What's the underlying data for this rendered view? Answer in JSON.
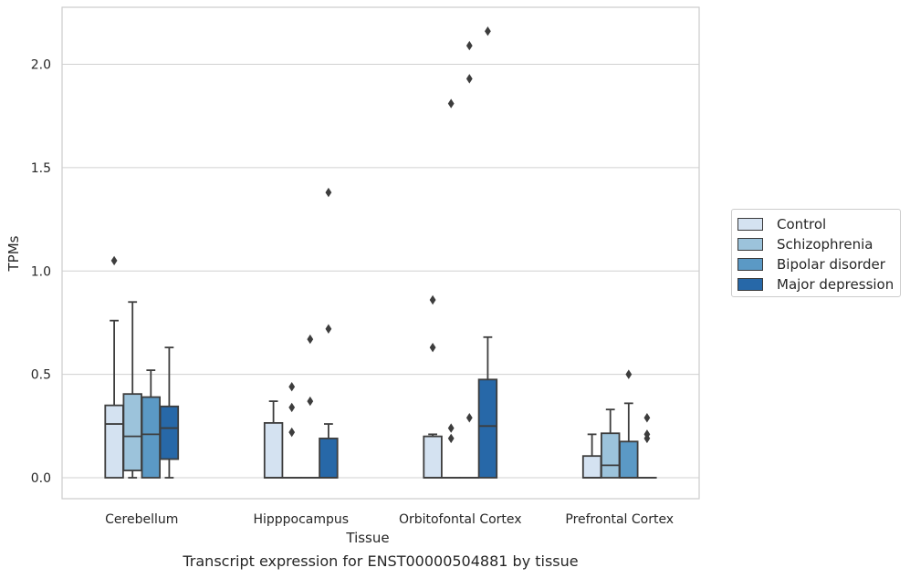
{
  "chart_data": {
    "type": "box",
    "xlabel": "Tissue",
    "ylabel": "TPMs",
    "caption": "Transcript expression for ENST00000504881 by tissue",
    "ylim": [
      -0.1,
      2.28
    ],
    "yticks": [
      0.0,
      0.5,
      1.0,
      1.5,
      2.0
    ],
    "ytick_labels": [
      "0.0",
      "0.5",
      "1.0",
      "1.5",
      "2.0"
    ],
    "grid": "horizontal",
    "legend_placement": "right-center",
    "categories": [
      "Cerebellum",
      "Hipppocampus",
      "Orbitofontal Cortex",
      "Prefrontal Cortex"
    ],
    "series": [
      {
        "name": "Control",
        "color": "#d4e2f1",
        "boxes": [
          {
            "whisker_low": 0.0,
            "q1": 0.0,
            "median": 0.26,
            "q3": 0.35,
            "whisker_high": 0.76,
            "outliers": [
              1.05
            ]
          },
          {
            "whisker_low": 0.0,
            "q1": 0.0,
            "median": 0.0,
            "q3": 0.265,
            "whisker_high": 0.37,
            "outliers": []
          },
          {
            "whisker_low": 0.0,
            "q1": 0.0,
            "median": 0.0,
            "q3": 0.2,
            "whisker_high": 0.21,
            "outliers": [
              0.63,
              0.86
            ]
          },
          {
            "whisker_low": 0.0,
            "q1": 0.0,
            "median": 0.0,
            "q3": 0.105,
            "whisker_high": 0.21,
            "outliers": []
          }
        ]
      },
      {
        "name": "Schizophrenia",
        "color": "#9cc3db",
        "boxes": [
          {
            "whisker_low": 0.0,
            "q1": 0.035,
            "median": 0.2,
            "q3": 0.405,
            "whisker_high": 0.85,
            "outliers": []
          },
          {
            "whisker_low": 0.0,
            "q1": 0.0,
            "median": 0.0,
            "q3": 0.0,
            "whisker_high": 0.0,
            "outliers": [
              0.22,
              0.34,
              0.44
            ]
          },
          {
            "whisker_low": 0.0,
            "q1": 0.0,
            "median": 0.0,
            "q3": 0.0,
            "whisker_high": 0.0,
            "outliers": [
              0.19,
              0.24,
              1.81
            ]
          },
          {
            "whisker_low": 0.0,
            "q1": 0.0,
            "median": 0.06,
            "q3": 0.215,
            "whisker_high": 0.33,
            "outliers": []
          }
        ]
      },
      {
        "name": "Bipolar disorder",
        "color": "#5b99c5",
        "boxes": [
          {
            "whisker_low": 0.0,
            "q1": 0.0,
            "median": 0.21,
            "q3": 0.39,
            "whisker_high": 0.52,
            "outliers": []
          },
          {
            "whisker_low": 0.0,
            "q1": 0.0,
            "median": 0.0,
            "q3": 0.0,
            "whisker_high": 0.0,
            "outliers": [
              0.37,
              0.67
            ]
          },
          {
            "whisker_low": 0.0,
            "q1": 0.0,
            "median": 0.0,
            "q3": 0.0,
            "whisker_high": 0.0,
            "outliers": [
              0.29,
              1.93,
              2.09
            ]
          },
          {
            "whisker_low": 0.0,
            "q1": 0.0,
            "median": 0.0,
            "q3": 0.175,
            "whisker_high": 0.36,
            "outliers": [
              0.5
            ]
          }
        ]
      },
      {
        "name": "Major depression",
        "color": "#2768a8",
        "boxes": [
          {
            "whisker_low": 0.0,
            "q1": 0.09,
            "median": 0.24,
            "q3": 0.345,
            "whisker_high": 0.63,
            "outliers": []
          },
          {
            "whisker_low": 0.0,
            "q1": 0.0,
            "median": 0.0,
            "q3": 0.19,
            "whisker_high": 0.26,
            "outliers": [
              0.72,
              1.38
            ]
          },
          {
            "whisker_low": 0.0,
            "q1": 0.0,
            "median": 0.25,
            "q3": 0.475,
            "whisker_high": 0.68,
            "outliers": [
              2.16
            ]
          },
          {
            "whisker_low": 0.0,
            "q1": 0.0,
            "median": 0.0,
            "q3": 0.0,
            "whisker_high": 0.0,
            "outliers": [
              0.19,
              0.21,
              0.29
            ]
          }
        ]
      }
    ]
  }
}
